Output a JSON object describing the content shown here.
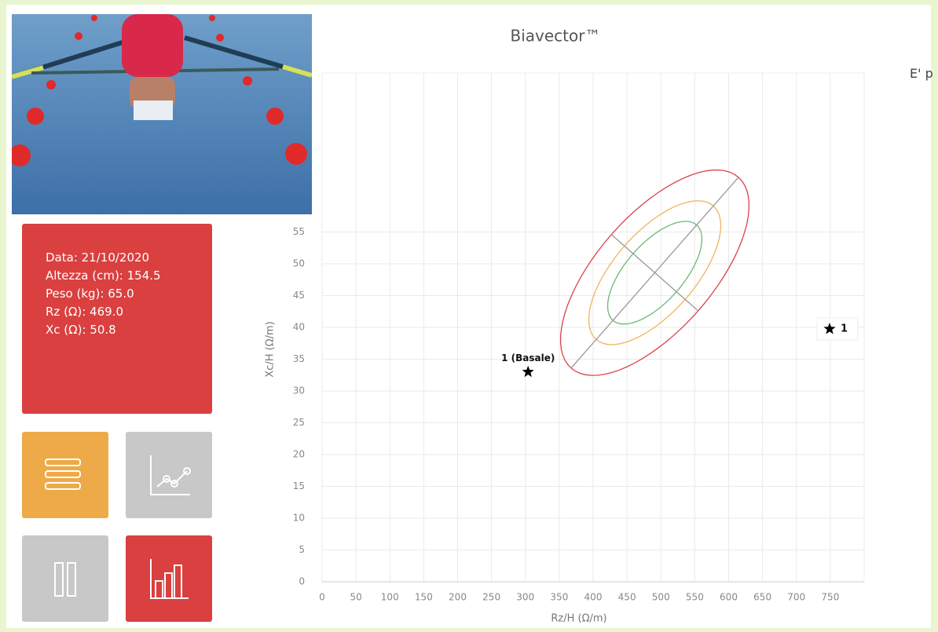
{
  "info": {
    "lines": [
      "Data: 21/10/2020",
      "Altezza (cm): 154.5",
      "Peso (kg): 65.0",
      "Rz (Ω): 469.0",
      "Xc (Ω): 50.8"
    ]
  },
  "side_text": "E' p",
  "chart_data": {
    "type": "scatter",
    "title": "Biavector™",
    "x_label": "Rz/H (Ω/m)",
    "y_label": "Xc/H (Ω/m)",
    "xlim": [
      0,
      800
    ],
    "ylim": [
      0,
      80
    ],
    "xticks": [
      0,
      50,
      100,
      150,
      200,
      250,
      300,
      350,
      400,
      450,
      500,
      550,
      600,
      650,
      700,
      750
    ],
    "yticks": [
      0,
      5,
      10,
      15,
      20,
      25,
      30,
      35,
      40,
      45,
      50,
      55
    ],
    "grid": true,
    "series": [
      {
        "name": "1",
        "color": "#000000",
        "x": [
          304
        ],
        "values": [
          33
        ],
        "value_labels": [
          "1 (Basale)"
        ]
      }
    ],
    "ellipse_center": [
      491,
      48.6
    ],
    "ellipse_major": [
      123.5,
      15
    ],
    "ellipse_minor": [
      64,
      -6
    ],
    "ellipses": [
      {
        "color": "#d9434a",
        "scale": 1
      },
      {
        "color": "#f0b45a",
        "scale": 0.7
      },
      {
        "color": "#6ab87a",
        "scale": 0.5
      }
    ],
    "axis_color": "#999999"
  }
}
